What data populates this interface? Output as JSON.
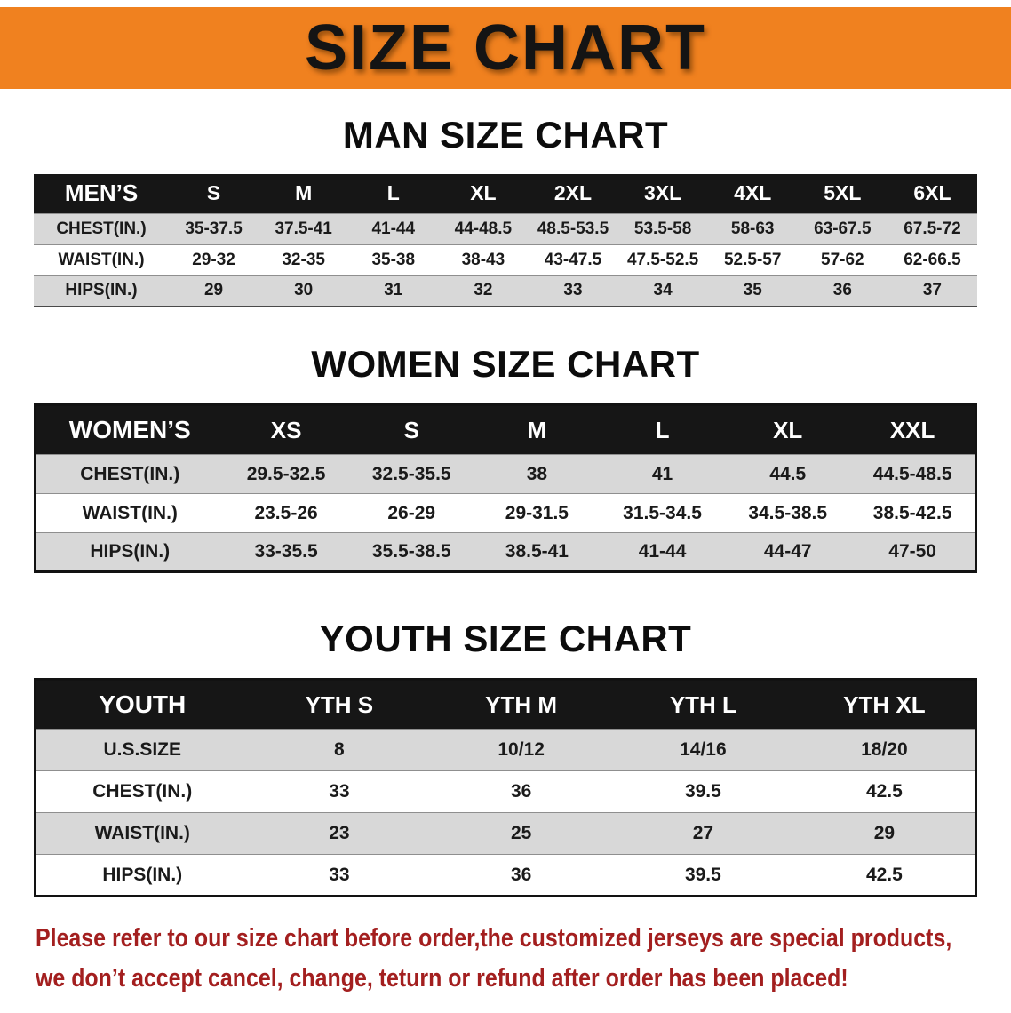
{
  "banner": {
    "title": "SIZE CHART"
  },
  "sections": [
    {
      "id": "men",
      "heading": "MAN SIZE CHART",
      "table": {
        "header": [
          "MEN’S",
          "S",
          "M",
          "L",
          "XL",
          "2XL",
          "3XL",
          "4XL",
          "5XL",
          "6XL"
        ],
        "rows": [
          [
            "CHEST(IN.)",
            "35-37.5",
            "37.5-41",
            "41-44",
            "44-48.5",
            "48.5-53.5",
            "53.5-58",
            "58-63",
            "63-67.5",
            "67.5-72"
          ],
          [
            "WAIST(IN.)",
            "29-32",
            "32-35",
            "35-38",
            "38-43",
            "43-47.5",
            "47.5-52.5",
            "52.5-57",
            "57-62",
            "62-66.5"
          ],
          [
            "HIPS(IN.)",
            "29",
            "30",
            "31",
            "32",
            "33",
            "34",
            "35",
            "36",
            "37"
          ]
        ]
      }
    },
    {
      "id": "women",
      "heading": "WOMEN SIZE CHART",
      "table": {
        "header": [
          "WOMEN’S",
          "XS",
          "S",
          "M",
          "L",
          "XL",
          "XXL"
        ],
        "rows": [
          [
            "CHEST(IN.)",
            "29.5-32.5",
            "32.5-35.5",
            "38",
            "41",
            "44.5",
            "44.5-48.5"
          ],
          [
            "WAIST(IN.)",
            "23.5-26",
            "26-29",
            "29-31.5",
            "31.5-34.5",
            "34.5-38.5",
            "38.5-42.5"
          ],
          [
            "HIPS(IN.)",
            "33-35.5",
            "35.5-38.5",
            "38.5-41",
            "41-44",
            "44-47",
            "47-50"
          ]
        ]
      }
    },
    {
      "id": "youth",
      "heading": "YOUTH SIZE CHART",
      "table": {
        "header": [
          "YOUTH",
          "YTH S",
          "YTH M",
          "YTH L",
          "YTH XL"
        ],
        "rows": [
          [
            "U.S.SIZE",
            "8",
            "10/12",
            "14/16",
            "18/20"
          ],
          [
            "CHEST(IN.)",
            "33",
            "36",
            "39.5",
            "42.5"
          ],
          [
            "WAIST(IN.)",
            "23",
            "25",
            "27",
            "29"
          ],
          [
            "HIPS(IN.)",
            "33",
            "36",
            "39.5",
            "42.5"
          ]
        ]
      }
    }
  ],
  "footer": {
    "line1": "Please refer to our size chart before order,the customized jerseys are special products,",
    "line2": "we don’t accept cancel, change, teturn or refund after order has been placed!"
  },
  "colors": {
    "banner_orange": "#f0811f",
    "table_header_black": "#161616",
    "row_gray": "#d8d8d8",
    "footer_red": "#a31f1f"
  }
}
